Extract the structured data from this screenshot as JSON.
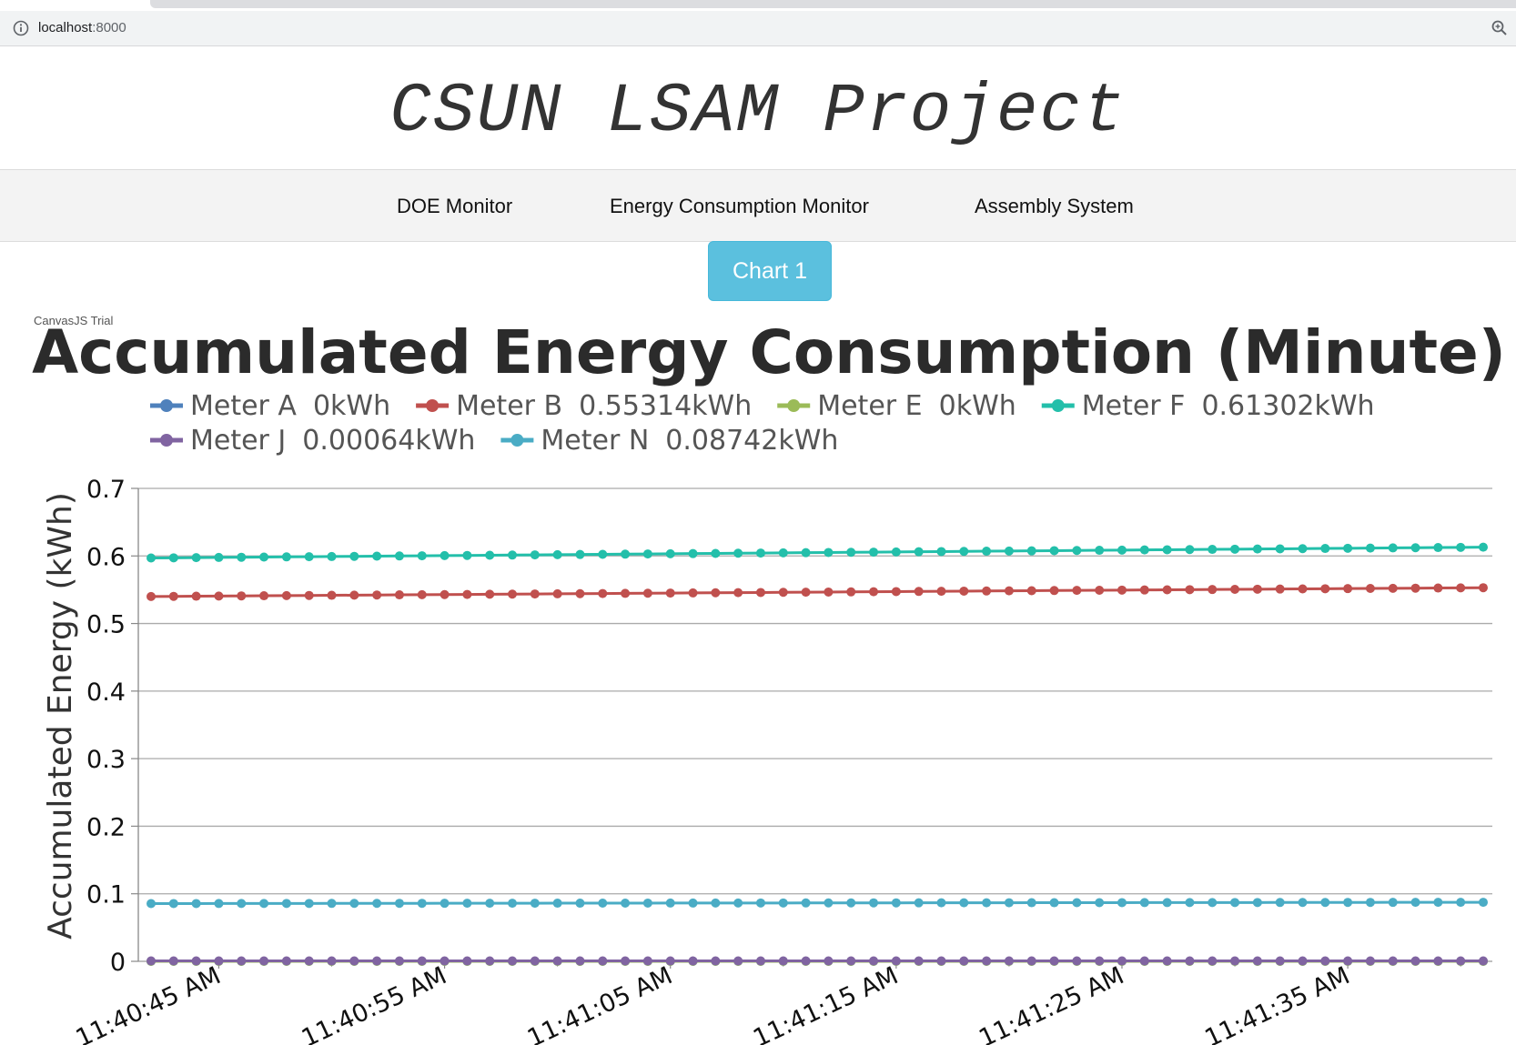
{
  "browser": {
    "url_host": "localhost",
    "url_port": ":8000",
    "info_icon": "info-icon",
    "zoom_icon": "zoom-icon"
  },
  "header": {
    "title": "CSUN LSAM Project"
  },
  "nav": {
    "items": [
      {
        "label": "DOE Monitor"
      },
      {
        "label": "Energy Consumption Monitor"
      },
      {
        "label": "Assembly System"
      }
    ]
  },
  "chart_button": {
    "label": "Chart 1",
    "color": "#5bc0de"
  },
  "watermark": "CanvasJS Trial",
  "chart_data": {
    "type": "line",
    "title": "Accumulated Energy Consumption (Minute)",
    "ylabel": "Accumulated Energy (kWh)",
    "xlabel": "",
    "ylim": [
      0,
      0.7
    ],
    "yticks": [
      "0",
      "0.1",
      "0.2",
      "0.3",
      "0.4",
      "0.5",
      "0.6",
      "0.7"
    ],
    "xtick_labels": [
      "11:40:45 AM",
      "11:40:55 AM",
      "11:41:05 AM",
      "11:41:15 AM",
      "11:41:25 AM",
      "11:41:35 AM"
    ],
    "x_start": "11:40:42 AM",
    "x_step_seconds": 1,
    "grid": true,
    "legend_position": "top",
    "series": [
      {
        "name": "Meter A",
        "reading": "0kWh",
        "color": "#4f81bc",
        "start": 0,
        "end": 0
      },
      {
        "name": "Meter B",
        "reading": "0.55314kWh",
        "color": "#c0504e",
        "start": 0.54,
        "end": 0.553
      },
      {
        "name": "Meter E",
        "reading": "0kWh",
        "color": "#9bbb58",
        "start": 0,
        "end": 0
      },
      {
        "name": "Meter F",
        "reading": "0.61302kWh",
        "color": "#23bfaa",
        "start": 0.597,
        "end": 0.613
      },
      {
        "name": "Meter J",
        "reading": "0.00064kWh",
        "color": "#8064a1",
        "start": 0.0006,
        "end": 0.0006
      },
      {
        "name": "Meter N",
        "reading": "0.08742kWh",
        "color": "#4aacc5",
        "start": 0.0855,
        "end": 0.0874
      }
    ],
    "point_count": 60
  }
}
